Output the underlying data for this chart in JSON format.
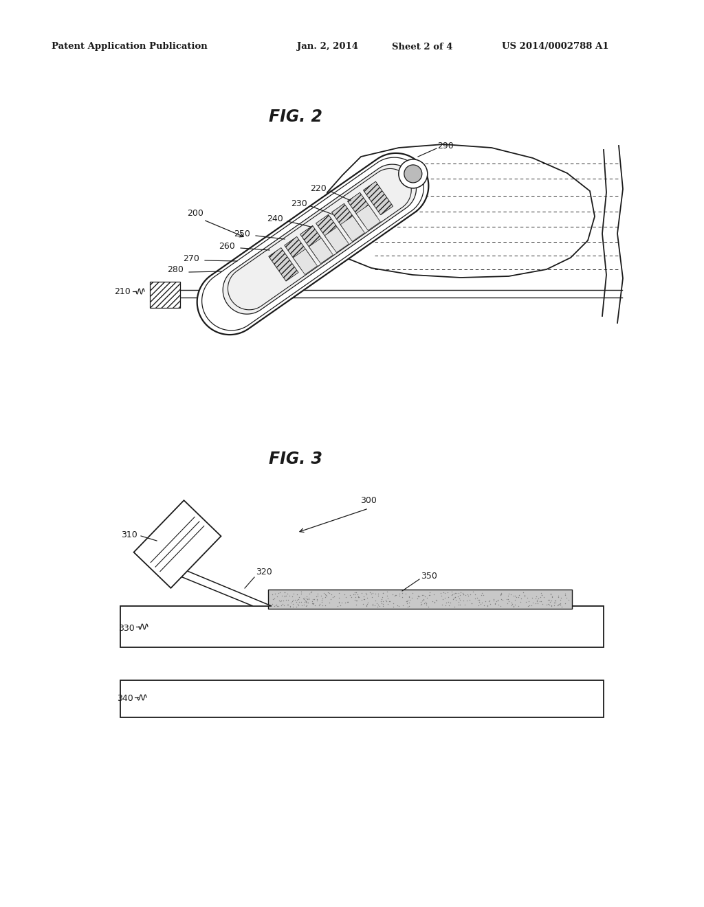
{
  "bg_color": "#ffffff",
  "header_left": "Patent Application Publication",
  "header_mid1": "Jan. 2, 2014",
  "header_mid2": "Sheet 2 of 4",
  "header_right": "US 2014/0002788 A1",
  "fig2_title": "FIG. 2",
  "fig3_title": "FIG. 3",
  "line_color": "#1a1a1a",
  "stipple_color": "#888888",
  "fill_light": "#e8e8e8",
  "fill_mid": "#cccccc",
  "fill_dark": "#aaaaaa"
}
